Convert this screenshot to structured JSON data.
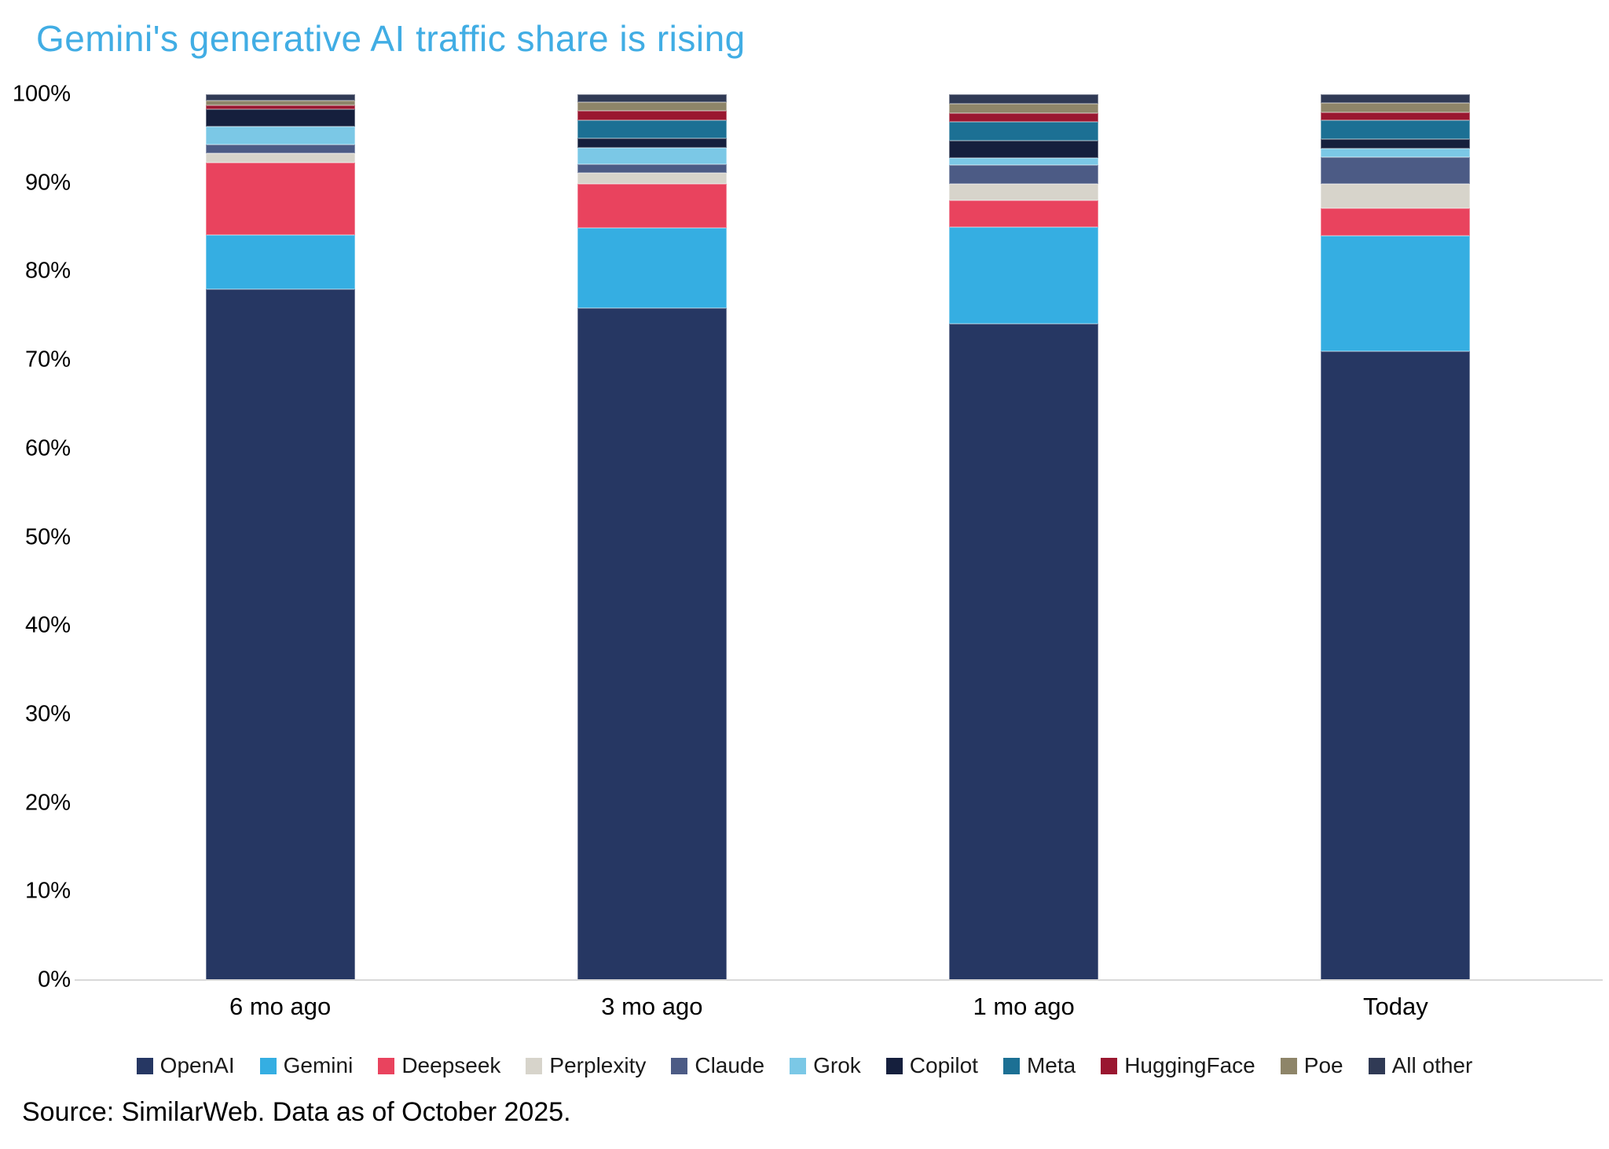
{
  "title": "Gemini's generative AI traffic share is rising",
  "source_note": "Source: SimilarWeb. Data as of October 2025.",
  "colors": {
    "title": "#41ADE4",
    "axis_text": "#000000",
    "baseline": "#D9D9D9"
  },
  "chart_data": {
    "type": "bar",
    "stacked": true,
    "percent_stacked": true,
    "title": "Gemini's generative AI traffic share is rising",
    "xlabel": "",
    "ylabel": "",
    "categories": [
      "6 mo ago",
      "3 mo ago",
      "1 mo ago",
      "Today"
    ],
    "series": [
      {
        "name": "OpenAI",
        "color": "#263763",
        "values": [
          78.0,
          75.9,
          74.1,
          71.0
        ]
      },
      {
        "name": "Gemini",
        "color": "#35AEE2",
        "values": [
          6.1,
          9.0,
          10.9,
          13.0
        ]
      },
      {
        "name": "Deepseek",
        "color": "#E9435E",
        "values": [
          8.2,
          5.0,
          3.0,
          3.1
        ]
      },
      {
        "name": "Perplexity",
        "color": "#D7D4CB",
        "values": [
          1.0,
          1.2,
          1.9,
          2.8
        ]
      },
      {
        "name": "Claude",
        "color": "#4C5B85",
        "values": [
          1.0,
          1.0,
          2.1,
          3.0
        ]
      },
      {
        "name": "Grok",
        "color": "#7BC8E6",
        "values": [
          2.1,
          1.9,
          0.8,
          1.0
        ]
      },
      {
        "name": "Copilot",
        "color": "#151F3D",
        "values": [
          1.9,
          1.0,
          2.0,
          1.0
        ]
      },
      {
        "name": "Meta",
        "color": "#1C7094",
        "values": [
          0.0,
          2.1,
          2.1,
          2.2
        ]
      },
      {
        "name": "HuggingFace",
        "color": "#9A1730",
        "values": [
          0.5,
          1.0,
          1.0,
          0.9
        ]
      },
      {
        "name": "Poe",
        "color": "#8E8569",
        "values": [
          0.5,
          1.0,
          1.0,
          1.0
        ]
      },
      {
        "name": "All other",
        "color": "#303A55",
        "values": [
          0.7,
          0.9,
          1.1,
          1.0
        ]
      }
    ],
    "y_axis": {
      "min": 0,
      "max": 100,
      "ticks": [
        "0%",
        "10%",
        "20%",
        "30%",
        "40%",
        "50%",
        "60%",
        "70%",
        "80%",
        "90%",
        "100%"
      ],
      "grid": false
    },
    "legend_position": "bottom"
  }
}
